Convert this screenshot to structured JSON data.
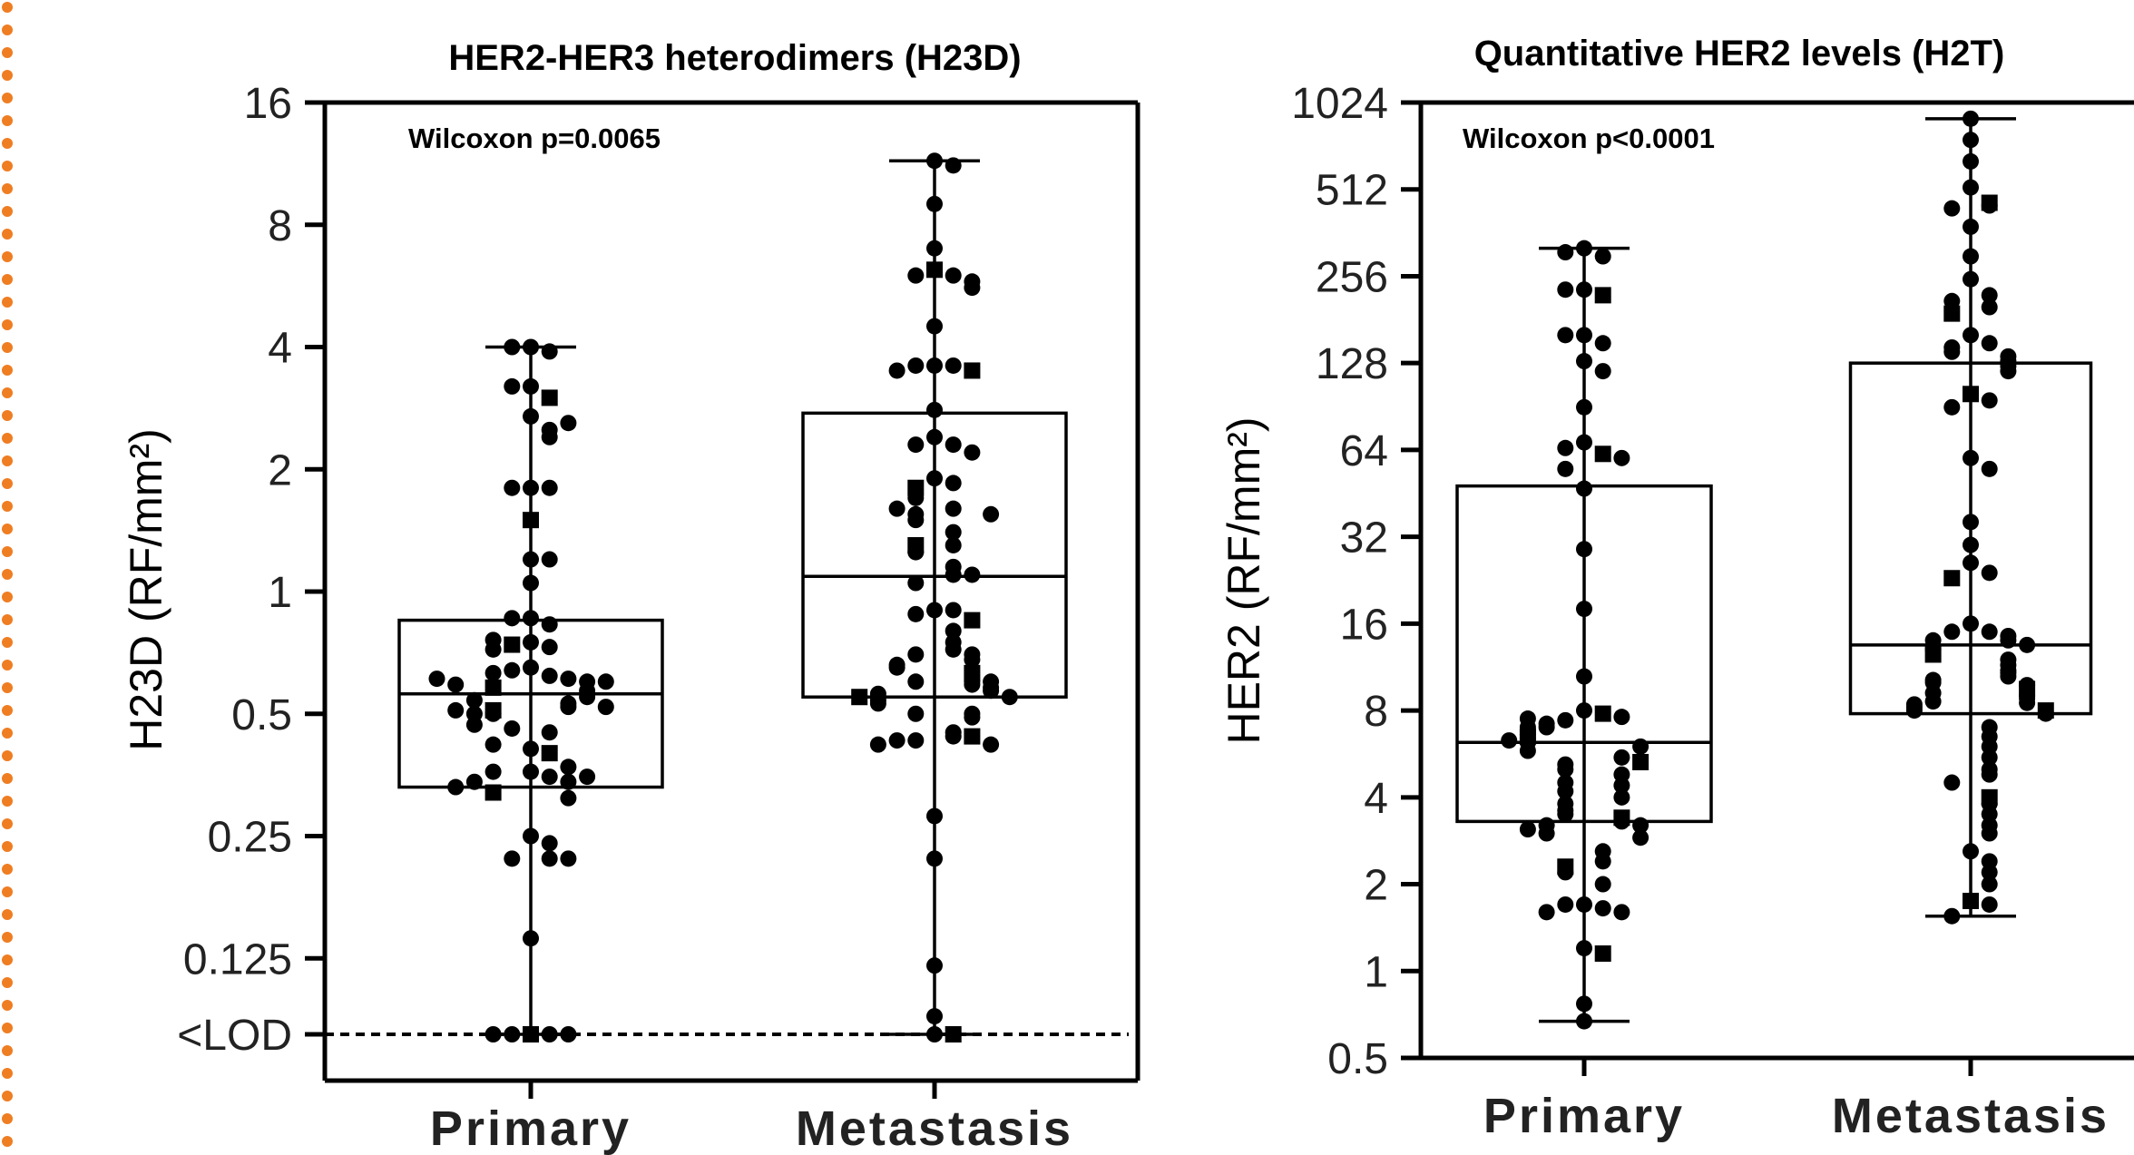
{
  "decor": {
    "left_border_color": "#ef7d22"
  },
  "chart_data": [
    {
      "type": "box-scatter",
      "title": "HER2-HER3 heterodimers (H23D)",
      "annotation": "Wilcoxon p=0.0065",
      "ylabel": "H23D (RF/mm²)",
      "yscale": "log2",
      "ylim": [
        0.0625,
        16
      ],
      "yticks": [
        "16",
        "8",
        "4",
        "2",
        "1",
        "0.5",
        "0.25",
        "0.125",
        "<LOD"
      ],
      "categories": [
        "Primary",
        "Metastasis"
      ],
      "lod_line": true,
      "grid": false,
      "series": [
        {
          "box": {
            "min": 0.068,
            "q1": 0.33,
            "median": 0.56,
            "q3": 0.85,
            "max": 4.0
          },
          "points": [
            4.0,
            3.9,
            4.0,
            3.2,
            3.0,
            3.2,
            2.7,
            2.5,
            2.4,
            2.6,
            1.8,
            1.8,
            1.8,
            1.5,
            1.2,
            1.2,
            1.05,
            0.86,
            0.83,
            0.86,
            0.75,
            0.73,
            0.74,
            0.76,
            0.72,
            0.65,
            0.62,
            0.64,
            0.61,
            0.63,
            0.6,
            0.58,
            0.6,
            0.57,
            0.59,
            0.61,
            0.55,
            0.53,
            0.52,
            0.54,
            0.51,
            0.5,
            0.52,
            0.5,
            0.51,
            0.46,
            0.45,
            0.47,
            0.41,
            0.4,
            0.42,
            0.36,
            0.35,
            0.37,
            0.34,
            0.36,
            0.35,
            0.34,
            0.32,
            0.31,
            0.33,
            0.25,
            0.24,
            0.22,
            0.22,
            0.22,
            0.14,
            0.068,
            0.068,
            0.068,
            0.068,
            0.068
          ]
        },
        {
          "box": {
            "min": 0.068,
            "q1": 0.55,
            "median": 1.09,
            "q3": 2.75,
            "max": 11.5
          },
          "points": [
            11.5,
            11.2,
            9.0,
            7.0,
            6.2,
            6.0,
            6.0,
            5.8,
            5.6,
            4.5,
            3.6,
            3.6,
            3.6,
            3.5,
            3.5,
            2.8,
            2.4,
            2.3,
            2.3,
            2.2,
            1.9,
            1.85,
            1.8,
            1.7,
            1.6,
            1.55,
            1.5,
            1.6,
            1.55,
            1.4,
            1.3,
            1.3,
            1.25,
            1.15,
            1.1,
            1.05,
            1.1,
            0.9,
            0.9,
            0.88,
            0.85,
            0.8,
            0.75,
            0.72,
            0.7,
            0.7,
            0.68,
            0.66,
            0.65,
            0.63,
            0.6,
            0.6,
            0.59,
            0.6,
            0.58,
            0.57,
            0.56,
            0.55,
            0.55,
            0.54,
            0.53,
            0.5,
            0.5,
            0.49,
            0.45,
            0.44,
            0.43,
            0.44,
            0.43,
            0.42,
            0.42,
            0.28,
            0.22,
            0.12,
            0.09,
            0.068,
            0.068
          ]
        }
      ]
    },
    {
      "type": "box-scatter",
      "title": "Quantitative HER2 levels (H2T)",
      "annotation": "Wilcoxon p<0.0001",
      "ylabel": "HER2 (RF/mm²)",
      "yscale": "log2",
      "ylim": [
        0.5,
        1024
      ],
      "yticks": [
        "1024",
        "512",
        "256",
        "128",
        "64",
        "32",
        "16",
        "8",
        "4",
        "2",
        "1",
        "0.5"
      ],
      "categories": [
        "Primary",
        "Metastasis"
      ],
      "grid": false,
      "series": [
        {
          "box": {
            "min": 0.67,
            "q1": 3.3,
            "median": 6.2,
            "q3": 48,
            "max": 320
          },
          "points": [
            320,
            300,
            310,
            230,
            220,
            230,
            160,
            150,
            160,
            130,
            120,
            90,
            68,
            62,
            65,
            60,
            55,
            47,
            29,
            18,
            10.5,
            8.0,
            7.8,
            7.4,
            7.6,
            7.2,
            7.0,
            7.5,
            7.0,
            6.8,
            6.6,
            6.5,
            6.4,
            6.2,
            6.0,
            6.3,
            5.8,
            5.5,
            5.2,
            5.0,
            5.3,
            4.8,
            4.5,
            4.4,
            4.2,
            4.0,
            3.8,
            3.6,
            3.5,
            3.4,
            3.3,
            3.2,
            3.2,
            3.0,
            3.1,
            2.9,
            2.6,
            2.4,
            2.3,
            2.2,
            2.0,
            1.7,
            1.65,
            1.7,
            1.6,
            1.6,
            1.2,
            1.15,
            0.77,
            0.67
          ]
        },
        {
          "box": {
            "min": 1.55,
            "q1": 7.8,
            "median": 13.5,
            "q3": 128,
            "max": 900
          },
          "points": [
            900,
            760,
            640,
            520,
            460,
            450,
            440,
            380,
            300,
            250,
            220,
            200,
            210,
            190,
            160,
            150,
            145,
            140,
            135,
            130,
            125,
            120,
            100,
            95,
            90,
            60,
            55,
            36,
            30,
            26,
            24,
            23,
            16,
            15,
            15,
            14.5,
            14,
            14,
            13.5,
            13,
            12.5,
            12,
            11.5,
            11,
            10.8,
            10.5,
            10.2,
            10,
            9.8,
            9.5,
            9.2,
            9.0,
            8.8,
            8.6,
            8.5,
            8.4,
            8.2,
            8.0,
            8.0,
            7.8,
            7.0,
            6.5,
            6.0,
            5.5,
            5.0,
            4.8,
            4.5,
            4.0,
            3.8,
            3.5,
            3.2,
            3.0,
            2.6,
            2.4,
            2.2,
            2.0,
            1.75,
            1.7,
            1.55
          ]
        }
      ]
    }
  ]
}
